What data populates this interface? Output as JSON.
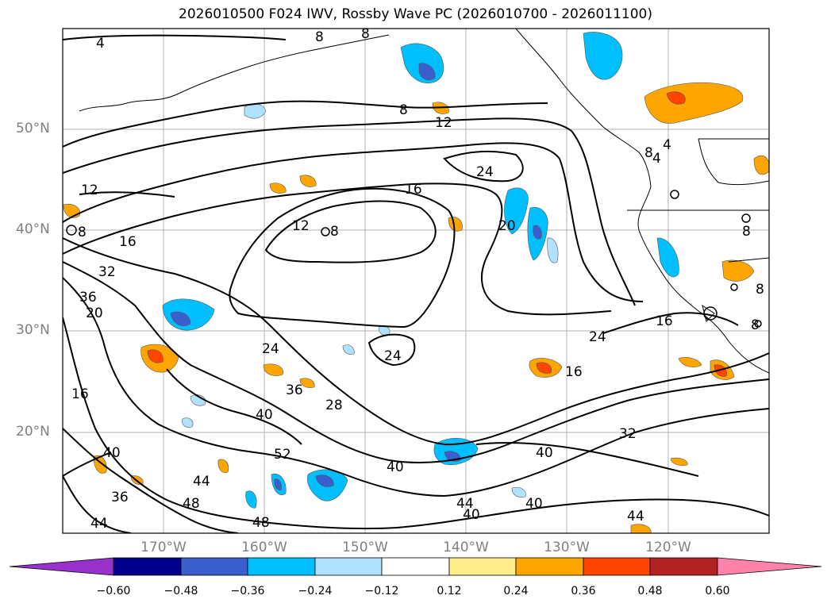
{
  "title": "2026010500 F024 IWV, Rossby Wave PC (2026010700 - 2026011100)",
  "map": {
    "region": "North-East Pacific",
    "lat_labels": [
      "50°N",
      "40°N",
      "30°N",
      "20°N"
    ],
    "lon_labels": [
      "170°W",
      "160°W",
      "150°W",
      "140°W",
      "130°W",
      "120°W"
    ],
    "contour_labels": [
      "4",
      "8",
      "12",
      "16",
      "20",
      "24",
      "28",
      "32",
      "36",
      "40",
      "44",
      "48",
      "52"
    ]
  },
  "colorbar": {
    "ticks": [
      "−0.60",
      "−0.48",
      "−0.36",
      "−0.24",
      "−0.12",
      "0.12",
      "0.24",
      "0.36",
      "0.48",
      "0.60"
    ],
    "colors": [
      "#9932cc",
      "#00008b",
      "#3a5fcd",
      "#00bfff",
      "#b0e2ff",
      "#ffffff",
      "#ffec8b",
      "#ffa500",
      "#ff4500",
      "#b22222",
      "#ff82ab"
    ]
  }
}
